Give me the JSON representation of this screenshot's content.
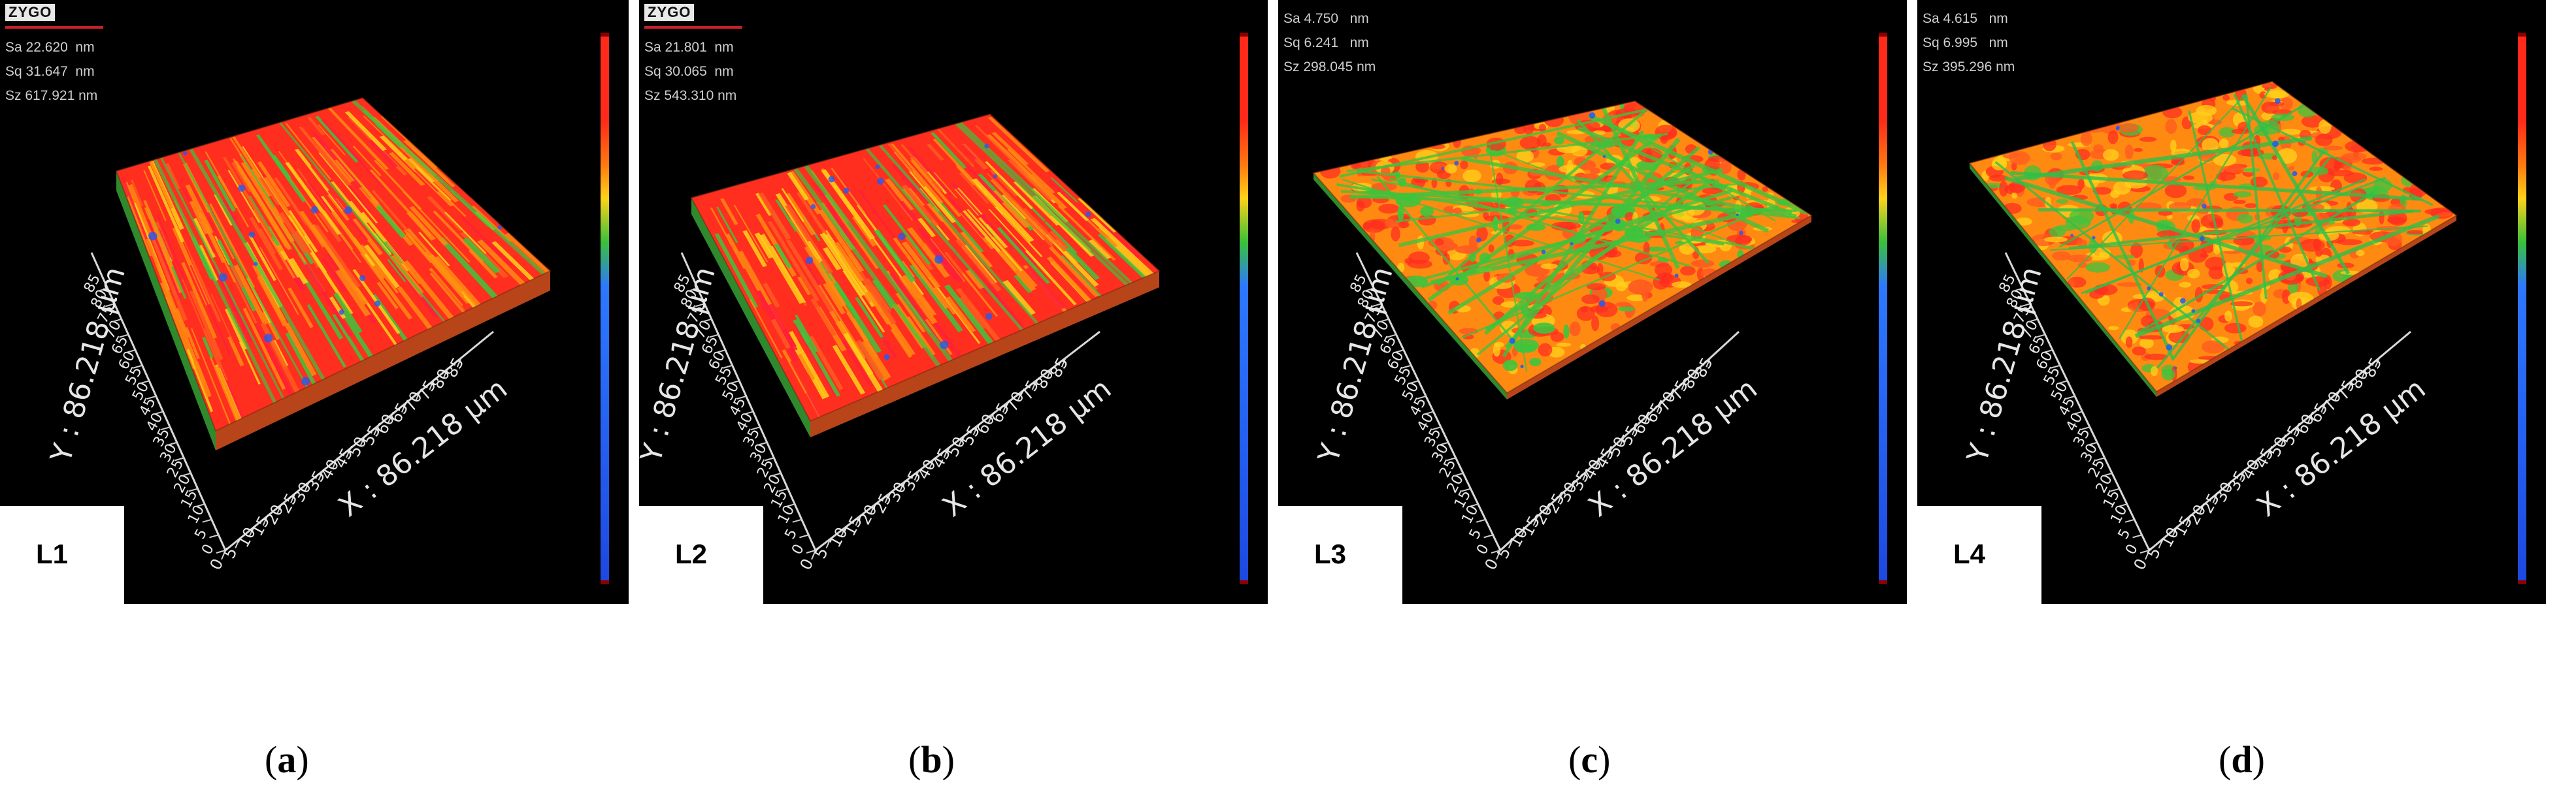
{
  "panels": [
    {
      "id": "a",
      "brand": "ZYGO",
      "sa": "Sa 22.620  nm",
      "sq": "Sq 31.647  nm",
      "sz": "Sz 617.921 nm",
      "y_axis": "Y : 86.218 μm",
      "x_axis": "X : 86.218 μm",
      "ticks": "0 5 10 15 20 25 30 35 40 45 50 55 60 65 70 75 80 85",
      "label": "L1",
      "caption_letter": "a",
      "texture": "striated"
    },
    {
      "id": "b",
      "brand": "ZYGO",
      "sa": "Sa 21.801  nm",
      "sq": "Sq 30.065  nm",
      "sz": "Sz 543.310 nm",
      "y_axis": "Y : 86.218 μm",
      "x_axis": "X : 86.218 μm",
      "ticks": "0 5 10 15 20 25 30 35 40 45 50 55 60 65 70 75 80 85",
      "label": "L2",
      "caption_letter": "b",
      "texture": "striated"
    },
    {
      "id": "c",
      "brand": "",
      "sa": "Sa 4.750   nm",
      "sq": "Sq 6.241   nm",
      "sz": "Sz 298.045 nm",
      "y_axis": "Y : 86.218 μm",
      "x_axis": "X : 86.218 μm",
      "ticks": "0 5 10 15 20 25 30 35 40 45 50 55 60 65 70 75 80 85",
      "label": "L3",
      "caption_letter": "c",
      "texture": "scratched"
    },
    {
      "id": "d",
      "brand": "",
      "sa": "Sa 4.615   nm",
      "sq": "Sq 6.995   nm",
      "sz": "Sz 395.296 nm",
      "y_axis": "Y : 86.218 μm",
      "x_axis": "X : 86.218 μm",
      "ticks": "0 5 10 15 20 25 30 35 40 45 50 55 60 65 70 75 80 85",
      "label": "L4",
      "caption_letter": "d",
      "texture": "scratched"
    }
  ],
  "caption_open": "(",
  "caption_close": ")",
  "colors": {
    "red": "#ff2e1f",
    "orange": "#ff8a12",
    "yellow": "#ffd21a",
    "green": "#3ec43d",
    "blue": "#1f5cf0"
  }
}
